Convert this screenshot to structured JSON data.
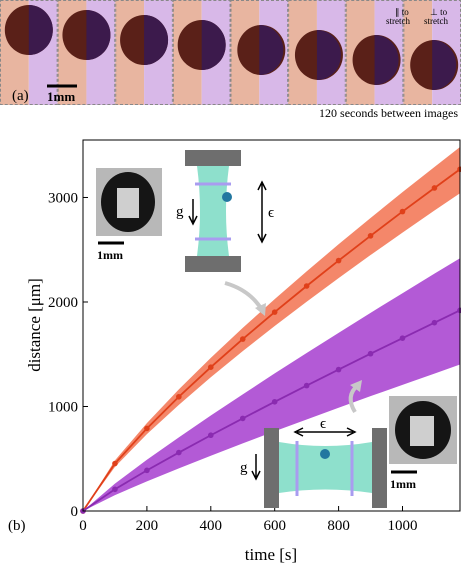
{
  "chart_data": {
    "type": "line",
    "x_label": "time [s]",
    "y_label": "distance [μm]",
    "x": [
      0,
      100,
      200,
      300,
      400,
      500,
      600,
      700,
      800,
      900,
      1000,
      1100,
      1180
    ],
    "series": [
      {
        "color": "#e0401a",
        "band_color": "#f4876a",
        "values": [
          0,
          454,
          790,
          1093,
          1376,
          1645,
          1903,
          2153,
          2396,
          2633,
          2865,
          3091,
          3270
        ],
        "lower": [
          0,
          422,
          735,
          1016,
          1280,
          1530,
          1770,
          2002,
          2228,
          2449,
          2664,
          2875,
          3041
        ],
        "upper": [
          0,
          484,
          841,
          1164,
          1465,
          1752,
          2027,
          2293,
          2552,
          2804,
          3051,
          3292,
          3483
        ]
      },
      {
        "color": "#8a2bb0",
        "band_color": "#b35ad6",
        "values": [
          0,
          208,
          389,
          559,
          725,
          886,
          1045,
          1200,
          1353,
          1505,
          1654,
          1802,
          1920
        ],
        "lower": [
          0,
          152,
          284,
          408,
          529,
          647,
          763,
          876,
          988,
          1099,
          1207,
          1315,
          1402
        ],
        "upper": [
          0,
          262,
          490,
          704,
          914,
          1116,
          1317,
          1512,
          1705,
          1896,
          2084,
          2271,
          2419
        ]
      }
    ],
    "xlim": [
      0,
      1180
    ],
    "ylim": [
      0,
      3550
    ],
    "xticks": [
      0,
      200,
      400,
      600,
      800,
      1000
    ],
    "yticks": [
      0,
      1000,
      2000,
      3000
    ],
    "annotations": [
      "(a)",
      "1mm",
      "∥ to",
      "stretch",
      "⊥ to",
      "stretch",
      "120 seconds between images",
      "(b)",
      "1mm",
      "g",
      "ϵ",
      "1mm",
      "g",
      "ϵ"
    ]
  }
}
